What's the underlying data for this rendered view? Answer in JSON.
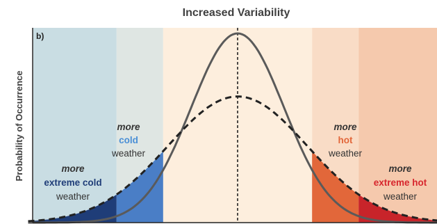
{
  "title": "Increased Variability",
  "ylabel": "Probability of Occurrence",
  "panel_label": "b)",
  "labels": {
    "extreme_cold": {
      "line1": "more",
      "line2": "extreme cold",
      "line3": "weather"
    },
    "cold": {
      "line1": "more",
      "line2": "cold",
      "line3": "weather"
    },
    "hot": {
      "line1": "more",
      "line2": "hot",
      "line3": "weather"
    },
    "extreme_hot": {
      "line1": "more",
      "line2": "extreme hot",
      "line3": "weather"
    }
  },
  "colors": {
    "extreme_cold_region": "#c9dde3",
    "cold_region": "#dfe6e3",
    "average_region": "#fdeedd",
    "hot_region": "#f9dcc6",
    "extreme_hot_region": "#f5c9ad",
    "extreme_cold_fill": "#1f3d78",
    "cold_fill": "#4a7ec6",
    "hot_fill": "#e2673a",
    "extreme_hot_fill": "#c8242a",
    "extreme_cold_text": "#1f3d78",
    "cold_text": "#4a8fd6",
    "hot_text": "#e2673a",
    "extreme_hot_text": "#d7262d",
    "original_curve": "#5a5a5a",
    "wider_curve": "#222222"
  },
  "curves": [
    {
      "id": "original",
      "style": "solid",
      "sd": 1.0
    },
    {
      "id": "increased-variability",
      "style": "dashed",
      "sd": 1.5
    }
  ],
  "thresholds": {
    "extreme": 2.6,
    "moderate": 1.6
  }
}
